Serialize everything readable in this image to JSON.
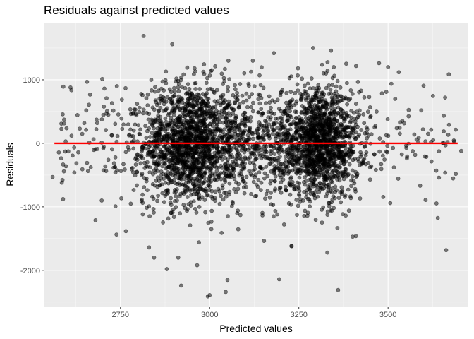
{
  "chart_data": {
    "type": "scatter",
    "title": "Residuals against predicted values",
    "xlabel": "Predicted values",
    "ylabel": "Residuals",
    "xlim": [
      2535,
      3725
    ],
    "ylim": [
      -2580,
      1900
    ],
    "x_ticks": [
      2750,
      3000,
      3250,
      3500
    ],
    "x_tick_labels": [
      "2750",
      "3000",
      "3250",
      "3500"
    ],
    "y_ticks": [
      -2000,
      -1000,
      0,
      1000
    ],
    "y_tick_labels": [
      "-2000",
      "-1000",
      "0",
      "1000"
    ],
    "grid": true,
    "legend": "none",
    "point_color": "#000000",
    "point_alpha": 0.5,
    "panel_background": "#ebebeb",
    "reference_line": {
      "y": 0,
      "x_from": 2565,
      "x_to": 3695,
      "color": "#ff0000"
    },
    "point_distribution_estimate": {
      "clusters": [
        {
          "x_center": 2945,
          "x_sd": 65,
          "y_sd": 470,
          "count": 1600
        },
        {
          "x_center": 3310,
          "x_sd": 55,
          "y_sd": 430,
          "count": 1450
        }
      ],
      "bridge": {
        "x_range": [
          3040,
          3230
        ],
        "y_sd": 460,
        "count": 500
      },
      "tails": {
        "x_range": [
          2575,
          3690
        ],
        "y_sd": 520,
        "count": 230
      }
    },
    "notable_points": [
      {
        "x": 2815,
        "y": 1690
      },
      {
        "x": 2895,
        "y": 1560
      },
      {
        "x": 3290,
        "y": 1500
      },
      {
        "x": 3340,
        "y": 1460
      },
      {
        "x": 3500,
        "y": 1200
      },
      {
        "x": 3530,
        "y": 1120
      },
      {
        "x": 3180,
        "y": 1420
      },
      {
        "x": 2740,
        "y": 900
      },
      {
        "x": 2610,
        "y": 880
      },
      {
        "x": 2560,
        "y": -530
      },
      {
        "x": 2680,
        "y": -1210
      },
      {
        "x": 3660,
        "y": 720
      },
      {
        "x": 3705,
        "y": -120
      },
      {
        "x": 3580,
        "y": 60
      },
      {
        "x": 3635,
        "y": -430
      },
      {
        "x": 2880,
        "y": -1980
      },
      {
        "x": 2920,
        "y": -2240
      },
      {
        "x": 3000,
        "y": -2390
      },
      {
        "x": 2995,
        "y": -2410
      },
      {
        "x": 3045,
        "y": -2340
      },
      {
        "x": 3050,
        "y": -2150
      },
      {
        "x": 3195,
        "y": -2140
      },
      {
        "x": 3360,
        "y": -2310
      },
      {
        "x": 2965,
        "y": -1920
      },
      {
        "x": 2830,
        "y": -1640
      },
      {
        "x": 3330,
        "y": -1720
      },
      {
        "x": 3410,
        "y": -1460
      },
      {
        "x": 3230,
        "y": -1620
      },
      {
        "x": 2970,
        "y": -1560
      }
    ]
  }
}
